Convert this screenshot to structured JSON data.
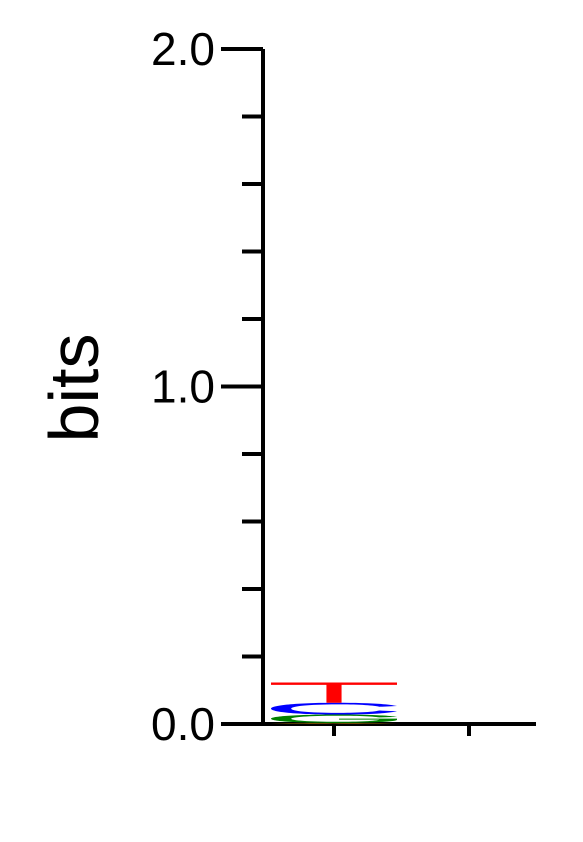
{
  "chart_data": {
    "type": "sequence_logo",
    "ylabel": "bits",
    "ylim": [
      0,
      2
    ],
    "y_major_ticks": [
      {
        "value": 0,
        "label": "0.0"
      },
      {
        "value": 1,
        "label": "1.0"
      },
      {
        "value": 2,
        "label": "2.0"
      }
    ],
    "y_minor_ticks": [
      0.2,
      0.4,
      0.6,
      0.8,
      1.2,
      1.4,
      1.6,
      1.8
    ],
    "positions": [
      {
        "index": 1,
        "stack": [
          {
            "letter": "A",
            "bits": 0.003,
            "color": "#FFA500"
          },
          {
            "letter": "G",
            "bits": 0.025,
            "color": "#008000"
          },
          {
            "letter": "C",
            "bits": 0.035,
            "color": "#0000FF"
          },
          {
            "letter": "T",
            "bits": 0.06,
            "color": "#FF0000"
          }
        ]
      }
    ],
    "x_tick_count": 2
  }
}
